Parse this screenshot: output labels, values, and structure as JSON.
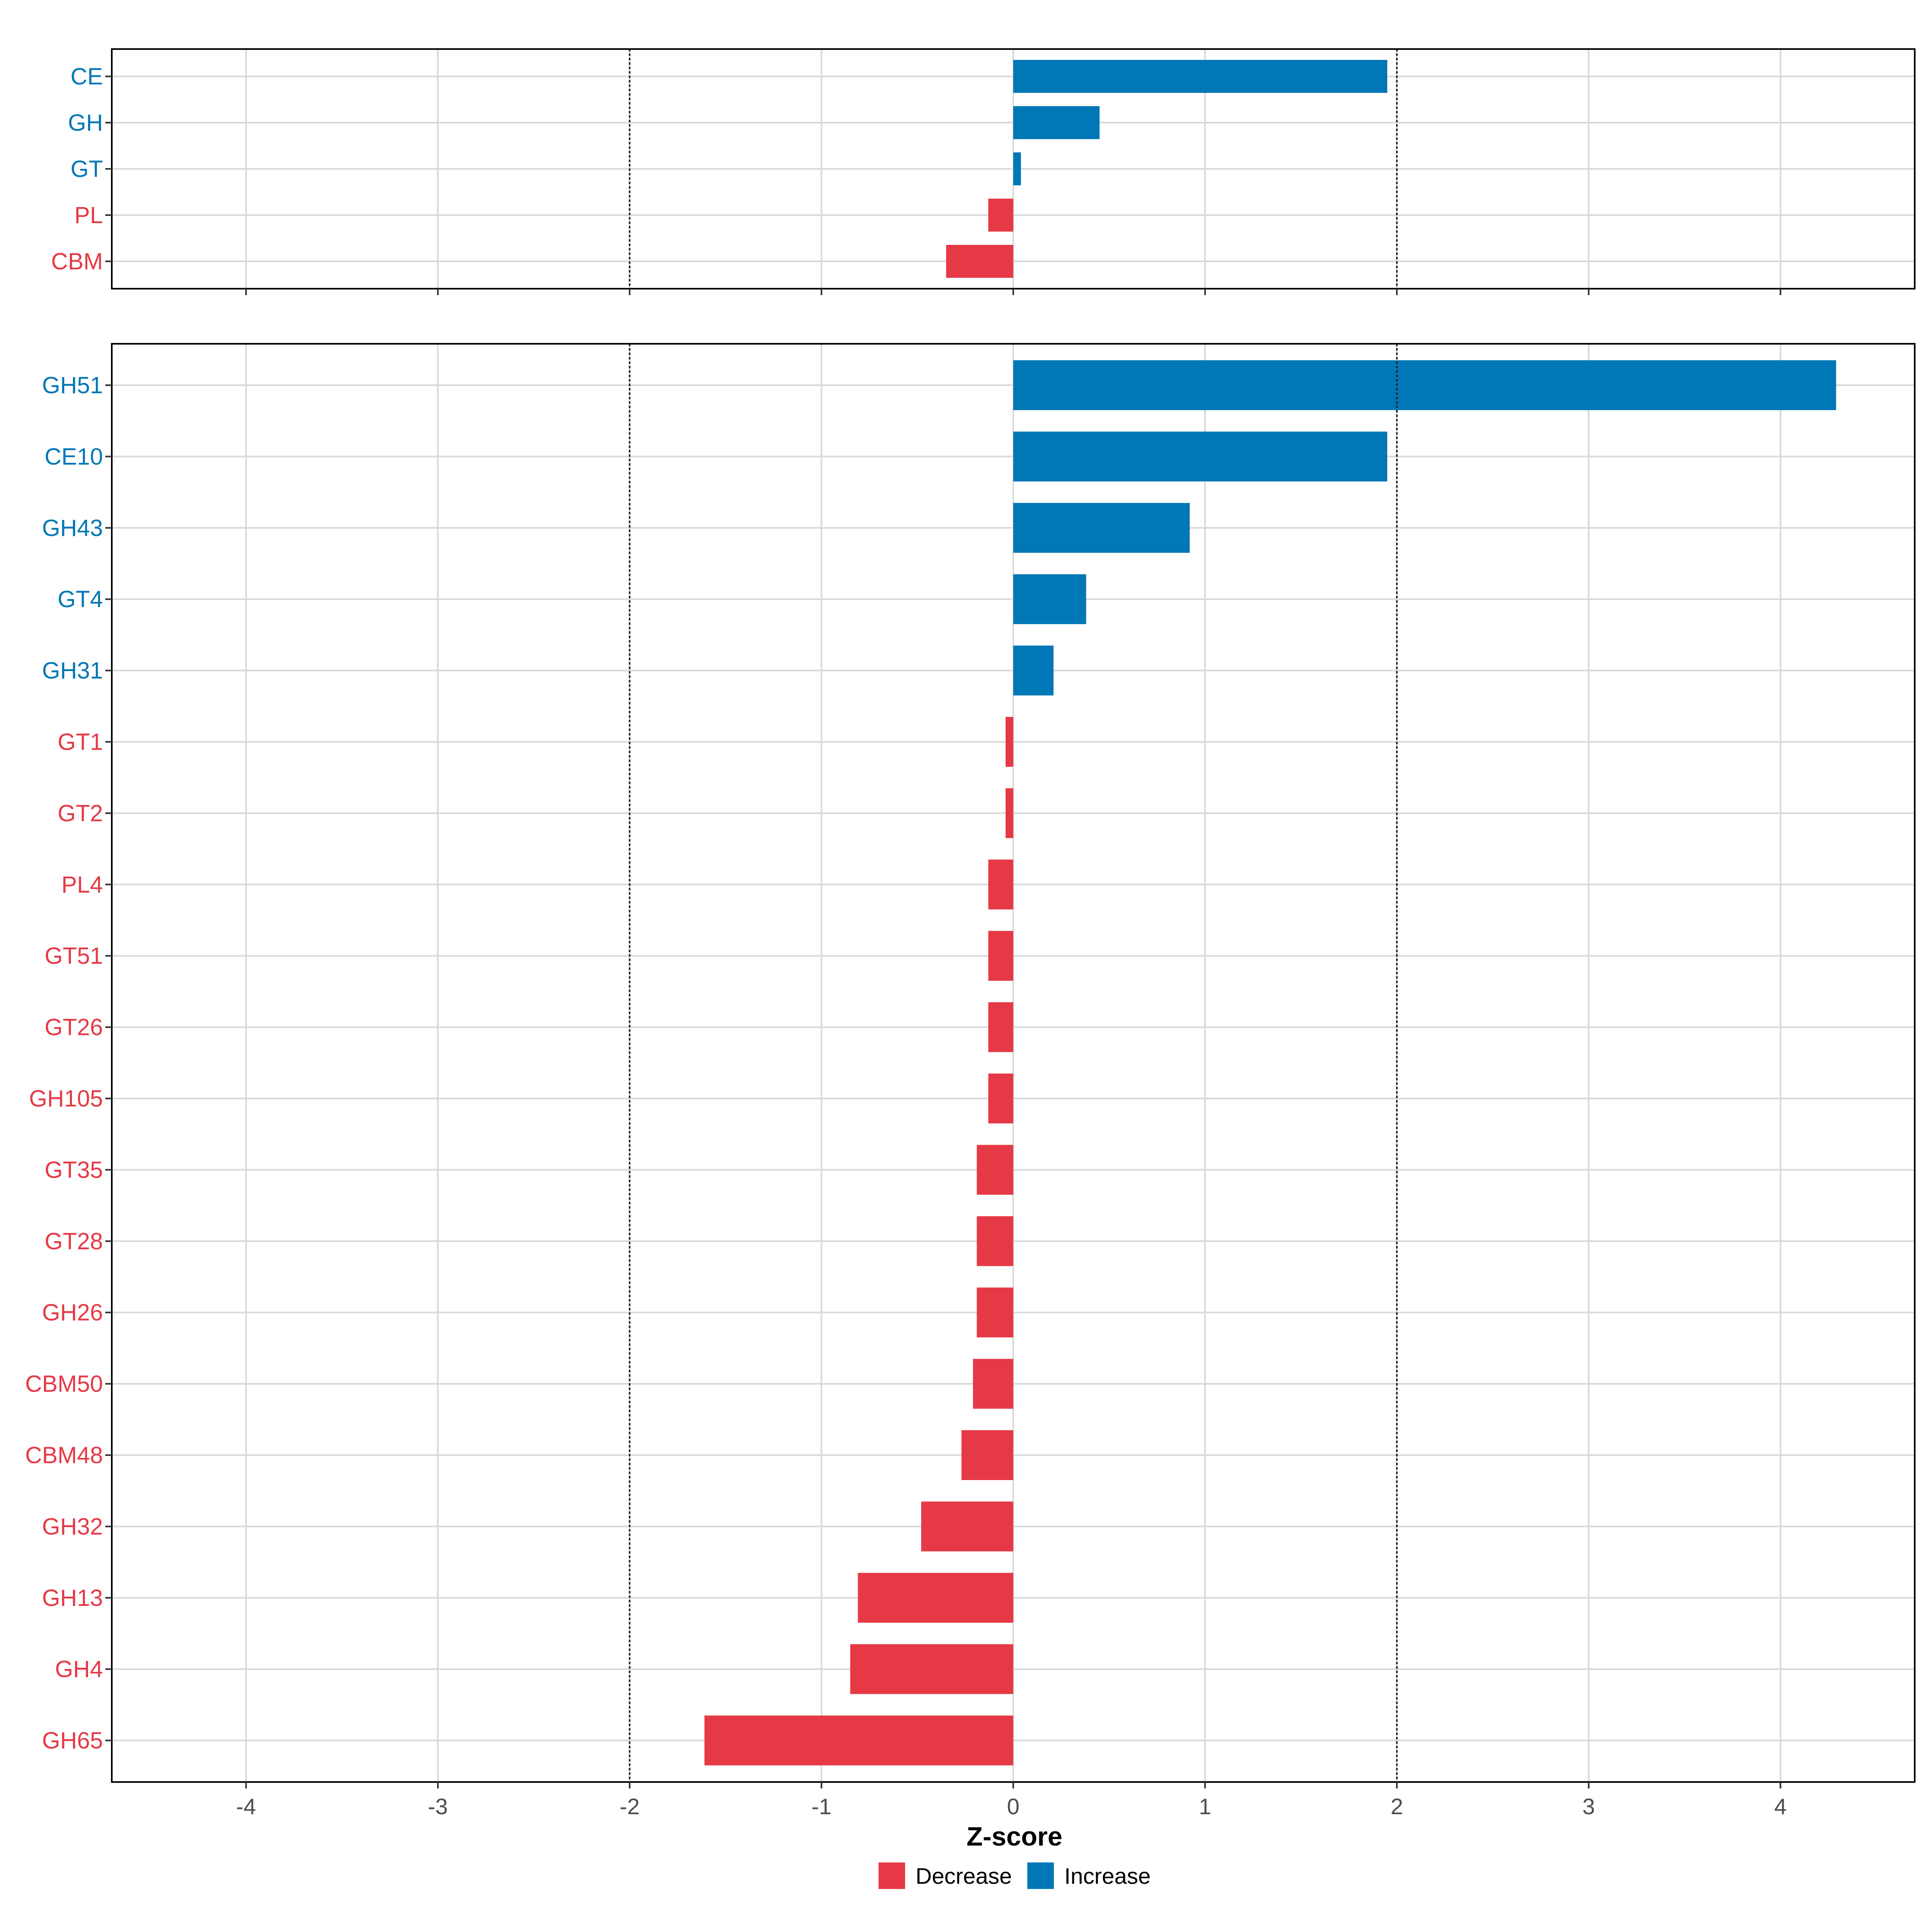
{
  "colors": {
    "decrease": "#E63946",
    "increase": "#0077B6",
    "grid": "#D9D9D9",
    "axis": "#333333",
    "reference": "#222222"
  },
  "chart_data": [
    {
      "type": "bar",
      "orientation": "horizontal",
      "panel": "family",
      "categories": [
        "CE",
        "GH",
        "GT",
        "PL",
        "CBM"
      ],
      "values": [
        1.95,
        0.45,
        0.04,
        -0.13,
        -0.35
      ],
      "groups": [
        "Increase",
        "Increase",
        "Increase",
        "Decrease",
        "Decrease"
      ],
      "xlim": [
        -4.7,
        4.7
      ],
      "reference_lines": [
        -2,
        2
      ]
    },
    {
      "type": "bar",
      "orientation": "horizontal",
      "panel": "subfamily",
      "categories": [
        "GH51",
        "CE10",
        "GH43",
        "GT4",
        "GH31",
        "GT1",
        "GT2",
        "PL4",
        "GT51",
        "GT26",
        "GH105",
        "GT35",
        "GT28",
        "GH26",
        "CBM50",
        "CBM48",
        "GH32",
        "GH13",
        "GH4",
        "GH65"
      ],
      "values": [
        4.29,
        1.95,
        0.92,
        0.38,
        0.21,
        -0.04,
        -0.04,
        -0.13,
        -0.13,
        -0.13,
        -0.13,
        -0.19,
        -0.19,
        -0.19,
        -0.21,
        -0.27,
        -0.48,
        -0.81,
        -0.85,
        -1.61
      ],
      "groups": [
        "Increase",
        "Increase",
        "Increase",
        "Increase",
        "Increase",
        "Decrease",
        "Decrease",
        "Decrease",
        "Decrease",
        "Decrease",
        "Decrease",
        "Decrease",
        "Decrease",
        "Decrease",
        "Decrease",
        "Decrease",
        "Decrease",
        "Decrease",
        "Decrease",
        "Decrease"
      ],
      "xlim": [
        -4.7,
        4.7
      ],
      "xticks": [
        -4,
        -3,
        -2,
        -1,
        0,
        1,
        2,
        3,
        4
      ],
      "xlabel": "Z-score",
      "reference_lines": [
        -2,
        2
      ]
    }
  ],
  "legend": {
    "position": "bottom",
    "items": [
      {
        "label": "Decrease",
        "key": "decrease"
      },
      {
        "label": "Increase",
        "key": "increase"
      }
    ]
  }
}
